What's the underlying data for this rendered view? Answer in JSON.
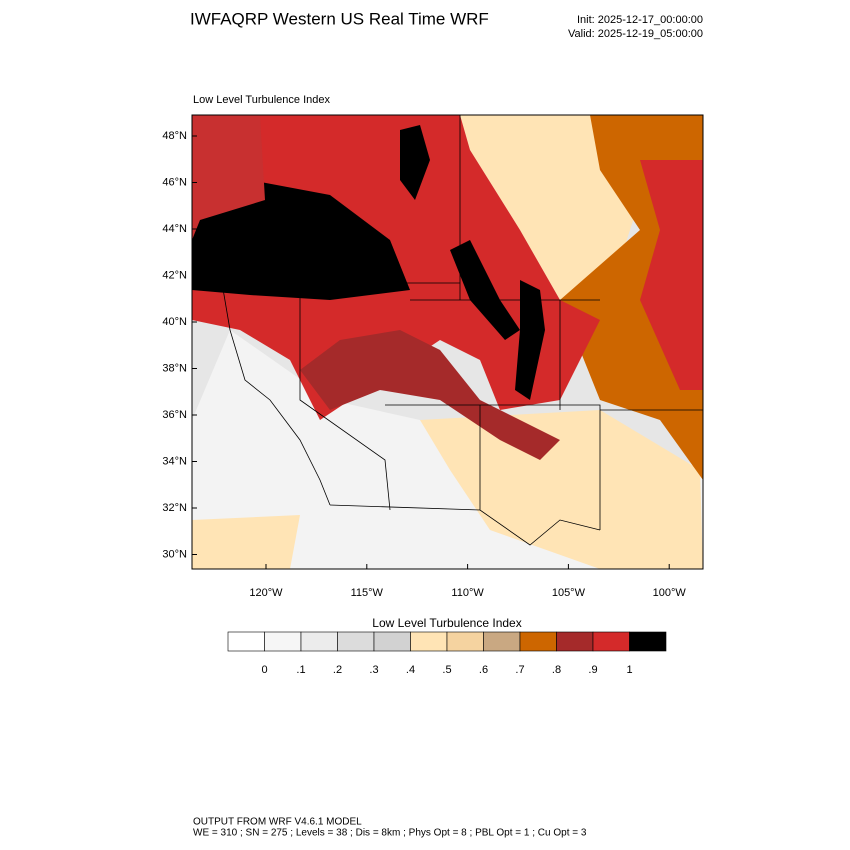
{
  "header": {
    "title": "IWFAQRP Western US Real Time WRF",
    "init": "Init: 2025-12-17_00:00:00",
    "valid": "Valid: 2025-12-19_05:00:00"
  },
  "map": {
    "subtitle": "Low Level Turbulence Index",
    "lat_labels": [
      "48°N",
      "46°N",
      "44°N",
      "42°N",
      "40°N",
      "38°N",
      "36°N",
      "34°N",
      "32°N",
      "30°N"
    ],
    "lon_labels": [
      "120°W",
      "115°W",
      "110°W",
      "105°W",
      "100°W"
    ]
  },
  "colorbar": {
    "title": "Low Level Turbulence Index",
    "colors": [
      "#ffffff",
      "#f6f6f6",
      "#ececec",
      "#dcdcdc",
      "#d2d2d2",
      "#ffe4b5",
      "#f5d3a0",
      "#c9a882",
      "#cd6600",
      "#a52a2a",
      "#d42a2a",
      "#000000"
    ],
    "labels": [
      "0",
      ".1",
      ".2",
      ".3",
      ".4",
      ".5",
      ".6",
      ".7",
      ".8",
      ".9",
      "1"
    ]
  },
  "footer": {
    "lines": [
      "OUTPUT FROM WRF V4.6.1 MODEL",
      "WE = 310 ; SN = 275 ; Levels = 38 ; Dis = 8km ; Phys Opt = 8 ; PBL Opt = 1 ; Cu Opt = 3"
    ]
  }
}
